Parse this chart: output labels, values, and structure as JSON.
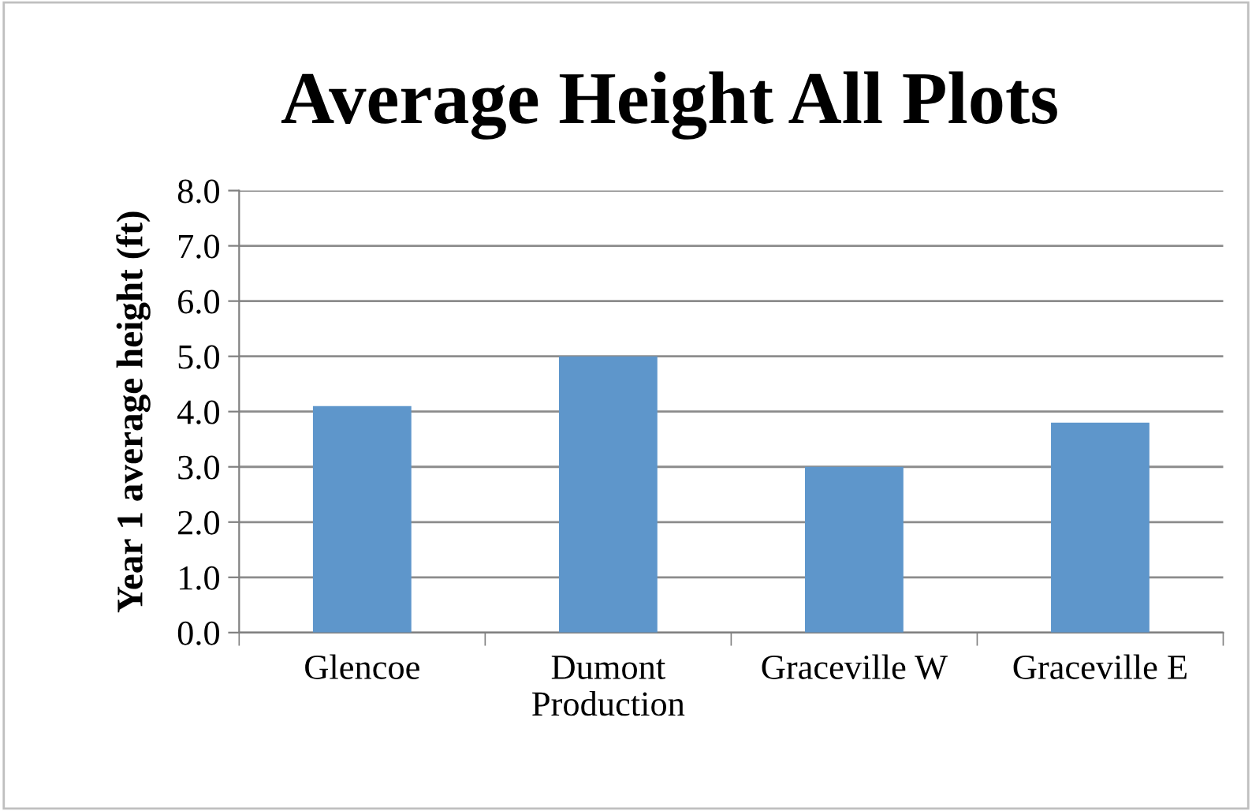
{
  "chart_data": {
    "type": "bar",
    "title": "Average Height All Plots",
    "ylabel": "Year 1 average height (ft)",
    "categories": [
      "Glencoe",
      "Dumont\nProduction",
      "Graceville W",
      "Graceville E"
    ],
    "values": [
      4.1,
      5.0,
      3.0,
      3.8
    ],
    "color": "#5e96cb",
    "ylim": [
      0,
      8
    ],
    "yticks": [
      {
        "value": 0,
        "label": "0.0"
      },
      {
        "value": 1,
        "label": "1.0"
      },
      {
        "value": 2,
        "label": "2.0"
      },
      {
        "value": 3,
        "label": "3.0"
      },
      {
        "value": 4,
        "label": "4.0"
      },
      {
        "value": 5,
        "label": "5.0"
      },
      {
        "value": 6,
        "label": "6.0"
      },
      {
        "value": 7,
        "label": "7.0"
      },
      {
        "value": 8,
        "label": "8.0"
      }
    ],
    "grid": "y",
    "legend": false
  }
}
